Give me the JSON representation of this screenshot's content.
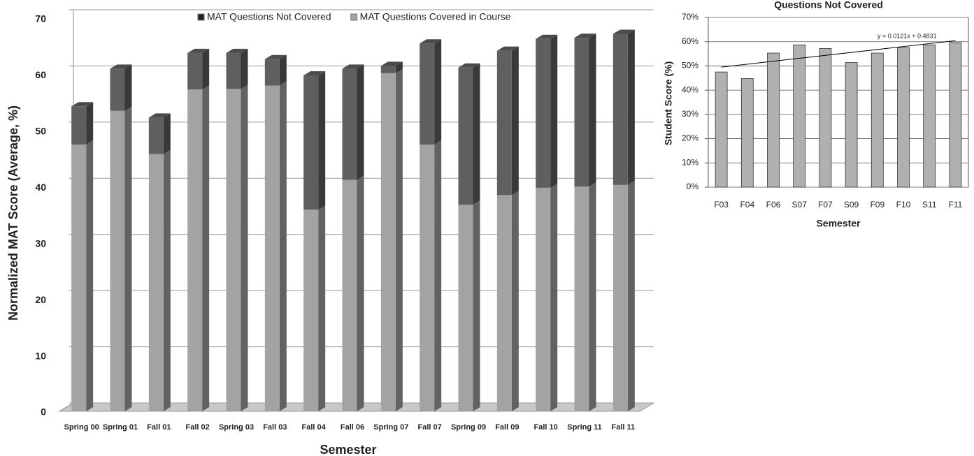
{
  "chart_data": [
    {
      "type": "bar3d_stacked",
      "y_label": "Normalized MAT Score (Average, %)",
      "x_label": "Semester",
      "categories": [
        "Spring 00",
        "Spring 01",
        "Fall 01",
        "Fall 02",
        "Spring 03",
        "Fall 03",
        "Fall 04",
        "Fall 06",
        "Spring 07",
        "Fall 07",
        "Spring 09",
        "Fall 09",
        "Fall 10",
        "Spring 11",
        "Fall 11"
      ],
      "series": [
        {
          "name": "MAT Questions Covered in Course",
          "color": "#a3a3a3",
          "values": [
            47.5,
            53.5,
            45.8,
            57.3,
            57.4,
            58.0,
            35.9,
            41.2,
            60.2,
            47.5,
            36.8,
            38.5,
            39.8,
            40.0,
            40.3
          ]
        },
        {
          "name": "MAT Questions Not Covered",
          "color": "#5f5f5f",
          "values": [
            6.8,
            7.5,
            6.5,
            6.5,
            6.4,
            4.7,
            23.9,
            19.8,
            1.3,
            18.0,
            24.4,
            25.7,
            26.5,
            26.5,
            26.9
          ]
        }
      ],
      "legend_order": [
        1,
        0
      ],
      "ylim": [
        0,
        70
      ],
      "yticks": [
        0,
        10,
        20,
        30,
        40,
        50,
        60,
        70
      ],
      "grid": true
    },
    {
      "type": "bar",
      "title": "Questions Not Covered",
      "y_label": "Student Score (%)",
      "x_label": "Semester",
      "categories": [
        "F03",
        "F04",
        "F06",
        "S07",
        "F07",
        "S09",
        "F09",
        "F10",
        "S11",
        "F11"
      ],
      "values": [
        47.5,
        44.8,
        55.3,
        58.7,
        57.2,
        51.4,
        55.3,
        57.6,
        58.7,
        59.6
      ],
      "color": "#b0b0b0",
      "ylim": [
        0,
        70
      ],
      "yticks": [
        {
          "value": 0,
          "label": "0%"
        },
        {
          "value": 10,
          "label": "10%"
        },
        {
          "value": 20,
          "label": "20%"
        },
        {
          "value": 30,
          "label": "30%"
        },
        {
          "value": 40,
          "label": "40%"
        },
        {
          "value": 50,
          "label": "50%"
        },
        {
          "value": 60,
          "label": "60%"
        },
        {
          "value": 70,
          "label": "70%"
        }
      ],
      "grid": true,
      "trendline": {
        "label": "y = 0.0121x + 0.4831",
        "slope": 0.0121,
        "intercept": 0.4831
      }
    }
  ]
}
